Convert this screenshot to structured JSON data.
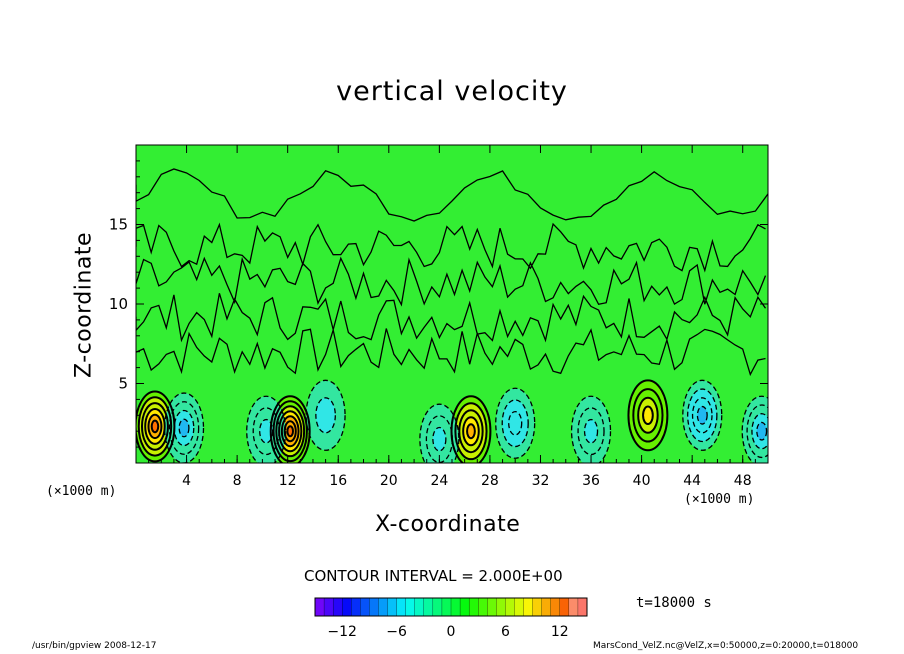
{
  "chart_data": {
    "type": "heatmap",
    "title": "vertical velocity",
    "xlabel": "X-coordinate",
    "ylabel": "Z-coordinate",
    "x_unit_left": "(×1000 m)",
    "x_unit_right": "(×1000 m)",
    "xlim": [
      0,
      50
    ],
    "ylim": [
      0,
      20
    ],
    "x_ticks": [
      "4",
      "8",
      "12",
      "16",
      "20",
      "24",
      "28",
      "32",
      "36",
      "40",
      "44",
      "48"
    ],
    "y_ticks": [
      "5",
      "10",
      "15"
    ],
    "contour_interval": "CONTOUR INTERVAL = 2.000E+00",
    "colorbar": {
      "range": [
        -15,
        15
      ],
      "ticks": [
        "−12",
        "−6",
        "0",
        "6",
        "12"
      ]
    },
    "cells": [
      {
        "x": 1.5,
        "z": 2.3,
        "w": 12
      },
      {
        "x": 3.8,
        "z": 2.2,
        "w": -7
      },
      {
        "x": 12.2,
        "z": 2.0,
        "w": 13
      },
      {
        "x": 10.3,
        "z": 2.0,
        "w": -5
      },
      {
        "x": 15.0,
        "z": 3.0,
        "w": -4
      },
      {
        "x": 26.5,
        "z": 2.0,
        "w": 10
      },
      {
        "x": 24.0,
        "z": 1.5,
        "w": -5
      },
      {
        "x": 30.0,
        "z": 2.5,
        "w": -6
      },
      {
        "x": 36.0,
        "z": 2.0,
        "w": -5
      },
      {
        "x": 40.5,
        "z": 3.0,
        "w": 7
      },
      {
        "x": 44.8,
        "z": 3.0,
        "w": -8
      },
      {
        "x": 49.5,
        "z": 2.0,
        "w": -7
      }
    ]
  },
  "time_label": "t=18000 s",
  "footer": {
    "left": "/usr/bin/gpview   2008-12-17",
    "right": "MarsCond_VelZ.nc@VelZ,x=0:50000,z=0:20000,t=018000"
  },
  "colors": {
    "background_field": "#33ee33",
    "positive_max": "#ff1a00",
    "negative_max": "#1a10c0"
  }
}
